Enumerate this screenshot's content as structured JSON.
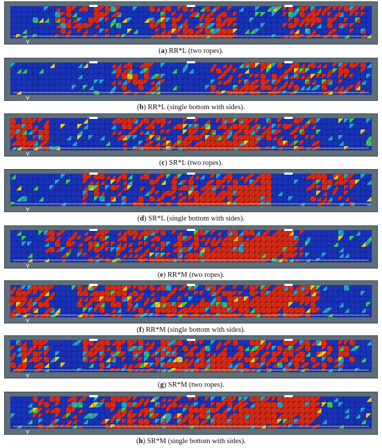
{
  "figure": {
    "panels": [
      {
        "label": "a",
        "caption": "RR*L (two ropes)."
      },
      {
        "label": "b",
        "caption": "RR*L (single bottom with sides)."
      },
      {
        "label": "c",
        "caption": "SR*L (two ropes)."
      },
      {
        "label": "d",
        "caption": "SR*L (single bottom with sides)."
      },
      {
        "label": "e",
        "caption": "RR*M (two ropes)."
      },
      {
        "label": "f",
        "caption": "RR*M (single bottom with sides)."
      },
      {
        "label": "g",
        "caption": "SR*M (two ropes)."
      },
      {
        "label": "h",
        "caption": "SR*M (single bottom with sides)."
      }
    ],
    "colors": {
      "low": "#1733c8",
      "mid_low": "#1fa8d8",
      "mid": "#37d05a",
      "mid_high": "#e8d020",
      "high": "#e22a14",
      "frame": "#5f6f7a",
      "mesh_line": "#1a1a1a"
    },
    "support_glyph": "Y"
  }
}
